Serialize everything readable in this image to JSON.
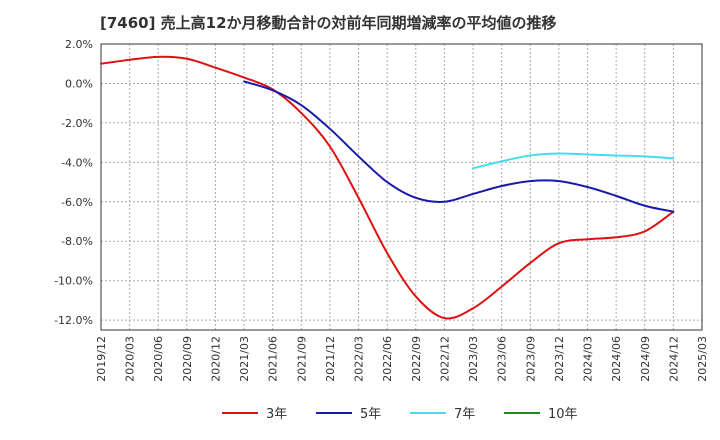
{
  "chart_data": {
    "type": "line",
    "title": "[7460]  売上高12か月移動合計の対前年同期増減率の平均値の推移",
    "xlabel": "",
    "ylabel": "",
    "x_ticks": [
      "2019/12",
      "2020/03",
      "2020/06",
      "2020/09",
      "2020/12",
      "2021/03",
      "2021/06",
      "2021/09",
      "2021/12",
      "2022/03",
      "2022/06",
      "2022/09",
      "2022/12",
      "2023/03",
      "2023/06",
      "2023/09",
      "2023/12",
      "2024/03",
      "2024/06",
      "2024/09",
      "2024/12",
      "2025/03"
    ],
    "y_ticks": [
      "2.0%",
      "0.0%",
      "-2.0%",
      "-4.0%",
      "-6.0%",
      "-8.0%",
      "-10.0%",
      "-12.0%"
    ],
    "y_tick_values": [
      2,
      0,
      -2,
      -4,
      -6,
      -8,
      -10,
      -12
    ],
    "ylim": [
      -12.5,
      2.0
    ],
    "grid": true,
    "legend_position": "bottom",
    "series": [
      {
        "name": "3年",
        "color": "#dd1111",
        "points": [
          [
            "2019/12",
            1.0
          ],
          [
            "2020/03",
            1.2
          ],
          [
            "2020/06",
            1.35
          ],
          [
            "2020/09",
            1.25
          ],
          [
            "2020/12",
            0.8
          ],
          [
            "2021/03",
            0.3
          ],
          [
            "2021/06",
            -0.3
          ],
          [
            "2021/09",
            -1.5
          ],
          [
            "2021/12",
            -3.2
          ],
          [
            "2022/03",
            -5.8
          ],
          [
            "2022/06",
            -8.6
          ],
          [
            "2022/09",
            -10.8
          ],
          [
            "2022/12",
            -11.9
          ],
          [
            "2023/03",
            -11.4
          ],
          [
            "2023/06",
            -10.3
          ],
          [
            "2023/09",
            -9.1
          ],
          [
            "2023/12",
            -8.1
          ],
          [
            "2024/03",
            -7.9
          ],
          [
            "2024/06",
            -7.8
          ],
          [
            "2024/09",
            -7.5
          ],
          [
            "2024/12",
            -6.5
          ]
        ]
      },
      {
        "name": "5年",
        "color": "#1a1aaa",
        "points": [
          [
            "2021/03",
            0.1
          ],
          [
            "2021/06",
            -0.35
          ],
          [
            "2021/09",
            -1.1
          ],
          [
            "2021/12",
            -2.3
          ],
          [
            "2022/03",
            -3.7
          ],
          [
            "2022/06",
            -5.0
          ],
          [
            "2022/09",
            -5.8
          ],
          [
            "2022/12",
            -6.0
          ],
          [
            "2023/03",
            -5.6
          ],
          [
            "2023/06",
            -5.2
          ],
          [
            "2023/09",
            -4.95
          ],
          [
            "2023/12",
            -4.95
          ],
          [
            "2024/03",
            -5.25
          ],
          [
            "2024/06",
            -5.7
          ],
          [
            "2024/09",
            -6.2
          ],
          [
            "2024/12",
            -6.5
          ]
        ]
      },
      {
        "name": "7年",
        "color": "#44ddee",
        "points": [
          [
            "2023/03",
            -4.3
          ],
          [
            "2023/06",
            -3.95
          ],
          [
            "2023/09",
            -3.65
          ],
          [
            "2023/12",
            -3.55
          ],
          [
            "2024/03",
            -3.6
          ],
          [
            "2024/06",
            -3.65
          ],
          [
            "2024/09",
            -3.7
          ],
          [
            "2024/12",
            -3.8
          ]
        ]
      },
      {
        "name": "10年",
        "color": "#228822",
        "points": []
      }
    ]
  }
}
